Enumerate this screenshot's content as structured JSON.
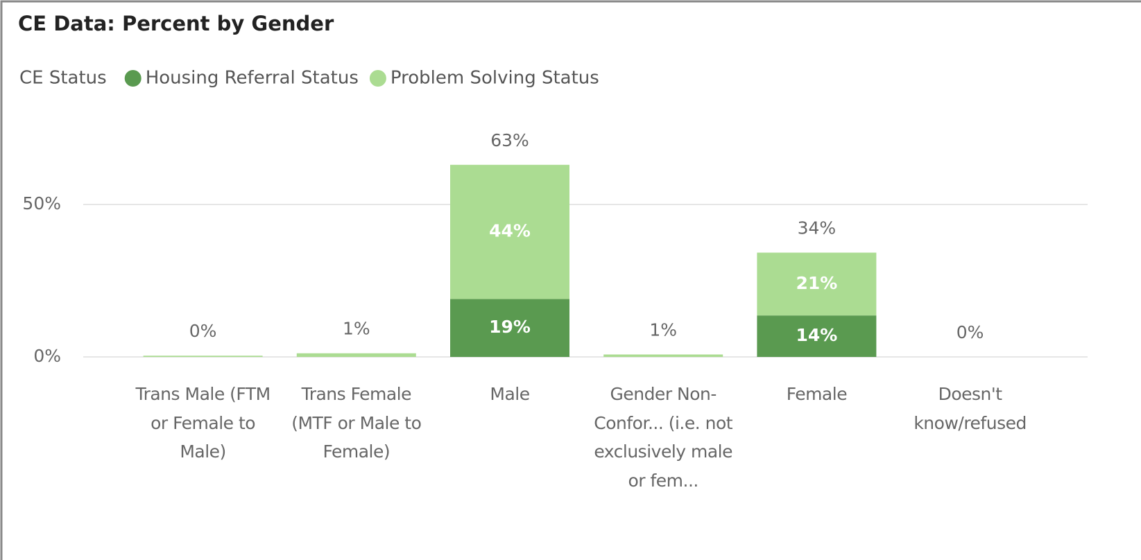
{
  "chart_data": {
    "type": "stacked_bar",
    "title": "CE Data: Percent by Gender",
    "legend_title": "CE Status",
    "categories": [
      "Trans Male (FTM or Female to Male)",
      "Trans Female (MTF or Male to Female)",
      "Male",
      "Gender Non-Confor... (i.e. not exclusively male or fem...",
      "Female",
      "Doesn't know/refused"
    ],
    "series": [
      {
        "name": "Housing Referral Status",
        "color": "#5a9a50",
        "values": [
          0,
          0,
          19,
          0,
          13.6,
          0
        ],
        "value_labels": [
          null,
          null,
          "19%",
          null,
          "14%",
          null
        ]
      },
      {
        "name": "Problem Solving Status",
        "color": "#abdc92",
        "values": [
          0.4,
          1.2,
          44,
          0.8,
          20.6,
          0
        ],
        "value_labels": [
          null,
          null,
          "44%",
          null,
          "21%",
          null
        ]
      }
    ],
    "totals": [
      0.4,
      1.2,
      63,
      0.8,
      34.2,
      0
    ],
    "total_labels": [
      "0%",
      "1%",
      "63%",
      "1%",
      "34%",
      "0%"
    ],
    "ylim": [
      0,
      70
    ],
    "yticks": [
      {
        "value": 0,
        "label": "0%"
      },
      {
        "value": 50,
        "label": "50%"
      }
    ],
    "grid": true
  }
}
